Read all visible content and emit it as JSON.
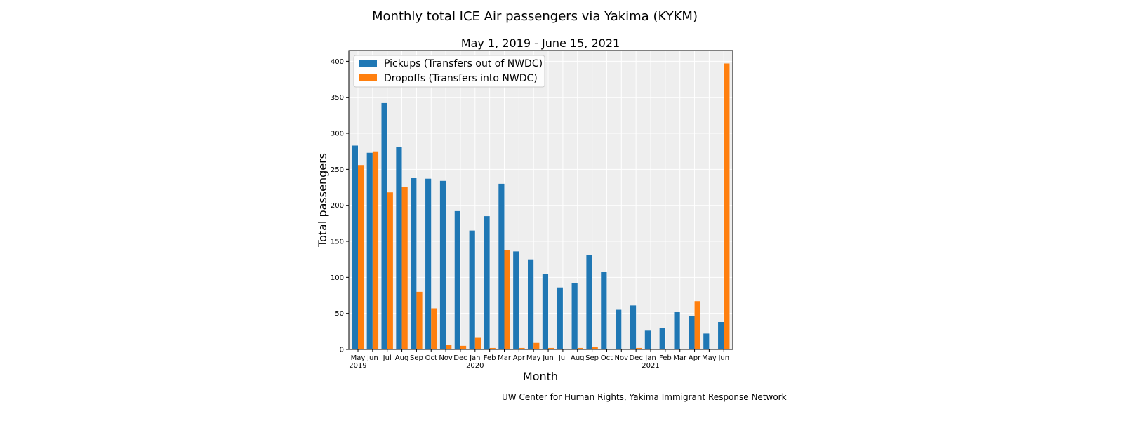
{
  "chart_data": {
    "type": "bar",
    "title": "Monthly total ICE Air passengers via Yakima (KYKM)",
    "subtitle": "May 1, 2019 - June 15, 2021",
    "xlabel": "Month",
    "ylabel": "Total passengers",
    "credit": "UW Center for Human Rights, Yakima Immigrant Response Network",
    "ylim": [
      0,
      415
    ],
    "yticks": [
      0,
      50,
      100,
      150,
      200,
      250,
      300,
      350,
      400
    ],
    "grid": true,
    "legend_position": "top-left",
    "categories": [
      "May",
      "Jun",
      "Jul",
      "Aug",
      "Sep",
      "Oct",
      "Nov",
      "Dec",
      "Jan",
      "Feb",
      "Mar",
      "Apr",
      "May",
      "Jun",
      "Jul",
      "Aug",
      "Sep",
      "Oct",
      "Nov",
      "Dec",
      "Jan",
      "Feb",
      "Mar",
      "Apr",
      "May",
      "Jun"
    ],
    "year_labels": [
      "2019",
      "",
      "",
      "",
      "",
      "",
      "",
      "",
      "2020",
      "",
      "",
      "",
      "",
      "",
      "",
      "",
      "",
      "",
      "",
      "",
      "2021",
      "",
      "",
      "",
      "",
      ""
    ],
    "series": [
      {
        "name": "Pickups (Transfers out of NWDC)",
        "color": "#1f77b4",
        "values": [
          283,
          273,
          342,
          281,
          238,
          237,
          234,
          192,
          165,
          185,
          230,
          136,
          125,
          105,
          86,
          92,
          131,
          108,
          55,
          61,
          26,
          30,
          52,
          46,
          22,
          38
        ]
      },
      {
        "name": "Dropoffs (Transfers into NWDC)",
        "color": "#ff7f0e",
        "values": [
          256,
          275,
          218,
          226,
          80,
          57,
          6,
          5,
          17,
          2,
          138,
          2,
          9,
          2,
          1,
          2,
          3,
          0,
          0,
          2,
          0,
          0,
          0,
          67,
          0,
          397
        ]
      }
    ]
  }
}
